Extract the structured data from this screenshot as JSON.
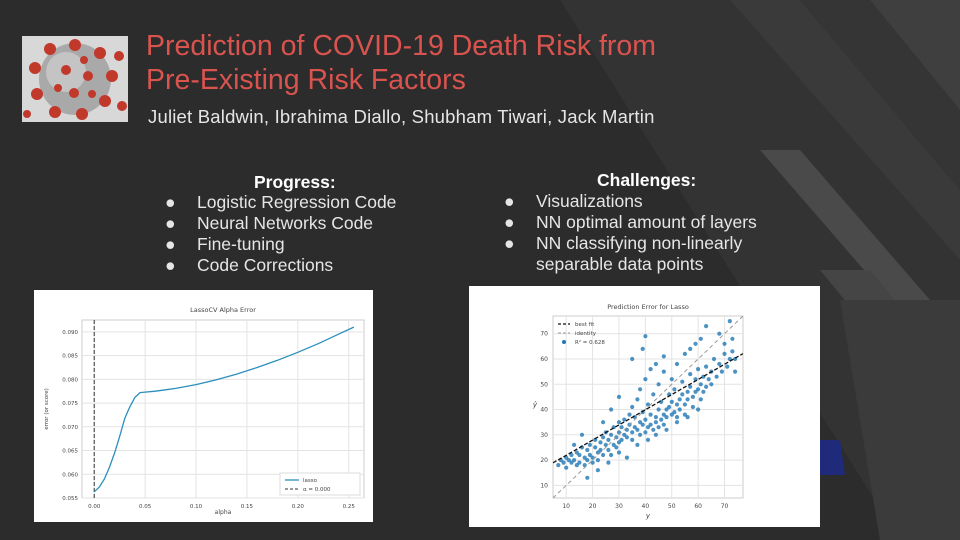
{
  "slide": {
    "title_line1": "Prediction of COVID-19 Death Risk from",
    "title_line2": "Pre-Existing Risk Factors",
    "authors": "Juliet Baldwin, Ibrahima Diallo, Shubham Tiwari, Jack Martin",
    "image_icon": "coronavirus-image",
    "colors": {
      "title": "#d9534f",
      "background": "#2c2c2c",
      "accent": "#1f2a7a"
    }
  },
  "progress": {
    "heading": "Progress:",
    "items": [
      "Logistic Regression Code",
      "Neural Networks Code",
      "Fine-tuning",
      "Code Corrections"
    ]
  },
  "challenges": {
    "heading": "Challenges:",
    "items": [
      "Visualizations",
      "NN optimal amount of layers",
      "NN classifying non-linearly",
      "separable data points"
    ]
  },
  "bullet": "●",
  "chart_data": [
    {
      "type": "line",
      "title": "LassoCV Alpha Error",
      "xlabel": "alpha",
      "ylabel": "error (or score)",
      "xlim": [
        -0.012,
        0.265
      ],
      "ylim": [
        0.055,
        0.0925
      ],
      "xticks": [
        0.0,
        0.05,
        0.1,
        0.15,
        0.2,
        0.25
      ],
      "xtick_labels": [
        "0.00",
        "0.05",
        "0.10",
        "0.15",
        "0.20",
        "0.25"
      ],
      "yticks": [
        0.055,
        0.06,
        0.065,
        0.07,
        0.075,
        0.08,
        0.085,
        0.09
      ],
      "ytick_labels": [
        "0.055",
        "0.060",
        "0.065",
        "0.070",
        "0.075",
        "0.080",
        "0.085",
        "0.090"
      ],
      "grid": true,
      "legend_position": "lower-right",
      "series": [
        {
          "name": "lasso",
          "color": "#2a8fbd",
          "x": [
            0.0,
            0.005,
            0.01,
            0.015,
            0.02,
            0.025,
            0.03,
            0.035,
            0.04,
            0.045,
            0.05,
            0.06,
            0.07,
            0.08,
            0.1,
            0.12,
            0.14,
            0.16,
            0.18,
            0.2,
            0.22,
            0.24,
            0.255
          ],
          "y": [
            0.0563,
            0.0573,
            0.059,
            0.0615,
            0.0645,
            0.068,
            0.0718,
            0.0742,
            0.0762,
            0.0772,
            0.0773,
            0.0775,
            0.0778,
            0.0781,
            0.0789,
            0.0799,
            0.0811,
            0.0825,
            0.084,
            0.0857,
            0.0875,
            0.0895,
            0.091
          ]
        }
      ],
      "vline": {
        "x": 0.0,
        "label": "α = 0.000",
        "color": "#333333"
      }
    },
    {
      "type": "scatter",
      "title": "Prediction Error for Lasso",
      "xlabel": "y",
      "ylabel": "ŷ",
      "xlim": [
        5,
        77
      ],
      "ylim": [
        5,
        77
      ],
      "xticks": [
        10,
        20,
        30,
        40,
        50,
        60,
        70
      ],
      "yticks": [
        10,
        20,
        30,
        40,
        50,
        60,
        70
      ],
      "grid": true,
      "legend_position": "top-left",
      "legend": [
        "best fit",
        "identity",
        "R² = 0.628"
      ],
      "point_color": "#1f77b4",
      "best_fit": {
        "intercept": 15.9,
        "slope": 0.6
      },
      "identity": {
        "slope": 1
      },
      "points": [
        [
          7,
          18
        ],
        [
          8,
          20
        ],
        [
          9,
          19
        ],
        [
          10,
          17
        ],
        [
          10,
          21
        ],
        [
          11,
          20
        ],
        [
          12,
          19
        ],
        [
          12,
          22
        ],
        [
          13,
          20
        ],
        [
          14,
          18
        ],
        [
          14,
          23
        ],
        [
          15,
          22
        ],
        [
          15,
          19
        ],
        [
          16,
          25
        ],
        [
          17,
          21
        ],
        [
          17,
          18
        ],
        [
          18,
          24
        ],
        [
          18,
          20
        ],
        [
          19,
          22
        ],
        [
          19,
          26
        ],
        [
          20,
          21
        ],
        [
          20,
          19
        ],
        [
          21,
          25
        ],
        [
          21,
          28
        ],
        [
          22,
          23
        ],
        [
          22,
          20
        ],
        [
          23,
          27
        ],
        [
          23,
          24
        ],
        [
          24,
          22
        ],
        [
          24,
          29
        ],
        [
          25,
          26
        ],
        [
          25,
          31
        ],
        [
          26,
          24
        ],
        [
          26,
          28
        ],
        [
          27,
          30
        ],
        [
          27,
          22
        ],
        [
          28,
          26
        ],
        [
          28,
          33
        ],
        [
          29,
          29
        ],
        [
          29,
          25
        ],
        [
          30,
          31
        ],
        [
          30,
          27
        ],
        [
          30,
          35
        ],
        [
          31,
          28
        ],
        [
          31,
          33
        ],
        [
          32,
          30
        ],
        [
          32,
          36
        ],
        [
          33,
          29
        ],
        [
          33,
          32
        ],
        [
          34,
          34
        ],
        [
          34,
          38
        ],
        [
          35,
          31
        ],
        [
          35,
          28
        ],
        [
          35,
          41
        ],
        [
          36,
          33
        ],
        [
          36,
          37
        ],
        [
          37,
          32
        ],
        [
          37,
          44
        ],
        [
          38,
          35
        ],
        [
          38,
          30
        ],
        [
          38,
          48
        ],
        [
          39,
          34
        ],
        [
          39,
          39
        ],
        [
          40,
          31
        ],
        [
          40,
          36
        ],
        [
          40,
          52
        ],
        [
          41,
          33
        ],
        [
          41,
          42
        ],
        [
          42,
          34
        ],
        [
          42,
          38
        ],
        [
          42,
          56
        ],
        [
          43,
          32
        ],
        [
          43,
          46
        ],
        [
          44,
          37
        ],
        [
          44,
          35
        ],
        [
          45,
          40
        ],
        [
          45,
          33
        ],
        [
          45,
          50
        ],
        [
          46,
          36
        ],
        [
          46,
          43
        ],
        [
          47,
          38
        ],
        [
          47,
          34
        ],
        [
          47,
          55
        ],
        [
          48,
          40
        ],
        [
          48,
          37
        ],
        [
          49,
          41
        ],
        [
          49,
          46
        ],
        [
          50,
          38
        ],
        [
          50,
          43
        ],
        [
          50,
          52
        ],
        [
          51,
          39
        ],
        [
          51,
          48
        ],
        [
          52,
          42
        ],
        [
          52,
          37
        ],
        [
          52,
          58
        ],
        [
          53,
          44
        ],
        [
          53,
          40
        ],
        [
          54,
          46
        ],
        [
          54,
          51
        ],
        [
          55,
          42
        ],
        [
          55,
          38
        ],
        [
          56,
          47
        ],
        [
          56,
          44
        ],
        [
          57,
          49
        ],
        [
          57,
          54
        ],
        [
          58,
          45
        ],
        [
          58,
          41
        ],
        [
          59,
          52
        ],
        [
          59,
          47
        ],
        [
          60,
          48
        ],
        [
          60,
          56
        ],
        [
          61,
          44
        ],
        [
          61,
          50
        ],
        [
          62,
          53
        ],
        [
          62,
          47
        ],
        [
          63,
          49
        ],
        [
          63,
          57
        ],
        [
          64,
          52
        ],
        [
          65,
          55
        ],
        [
          65,
          50
        ],
        [
          66,
          60
        ],
        [
          67,
          53
        ],
        [
          68,
          58
        ],
        [
          69,
          55
        ],
        [
          70,
          62
        ],
        [
          71,
          57
        ],
        [
          72,
          60
        ],
        [
          72,
          75
        ],
        [
          73,
          63
        ],
        [
          74,
          55
        ],
        [
          74,
          60
        ],
        [
          18,
          13
        ],
        [
          22,
          16
        ],
        [
          26,
          19
        ],
        [
          30,
          23
        ],
        [
          33,
          21
        ],
        [
          37,
          26
        ],
        [
          41,
          28
        ],
        [
          44,
          30
        ],
        [
          48,
          32
        ],
        [
          52,
          35
        ],
        [
          56,
          37
        ],
        [
          60,
          40
        ],
        [
          35,
          60
        ],
        [
          39,
          64
        ],
        [
          40,
          69
        ],
        [
          44,
          58
        ],
        [
          47,
          61
        ],
        [
          30,
          45
        ],
        [
          27,
          40
        ],
        [
          24,
          35
        ],
        [
          16,
          30
        ],
        [
          13,
          26
        ],
        [
          63,
          73
        ],
        [
          68,
          70
        ],
        [
          70,
          66
        ],
        [
          73,
          68
        ],
        [
          55,
          62
        ],
        [
          57,
          64
        ],
        [
          59,
          66
        ],
        [
          61,
          68
        ]
      ]
    }
  ]
}
